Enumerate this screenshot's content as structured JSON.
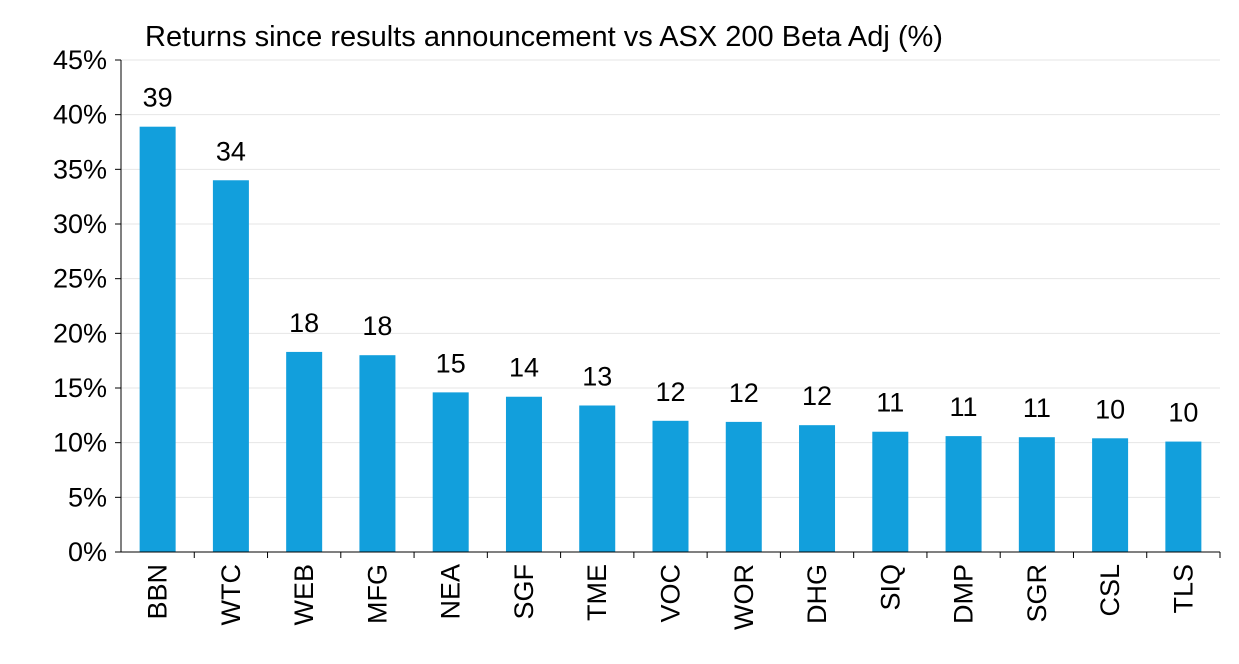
{
  "chart_data": {
    "type": "bar",
    "title": "Returns since results announcement vs ASX 200 Beta Adj (%)",
    "xlabel": "",
    "ylabel": "",
    "categories": [
      "BBN",
      "WTC",
      "WEB",
      "MFG",
      "NEA",
      "SGF",
      "TME",
      "VOC",
      "WOR",
      "DHG",
      "SIQ",
      "DMP",
      "SGR",
      "CSL",
      "TLS"
    ],
    "values": [
      38.9,
      34.0,
      18.3,
      18.0,
      14.6,
      14.2,
      13.4,
      12.0,
      11.9,
      11.6,
      11.0,
      10.6,
      10.5,
      10.4,
      10.1
    ],
    "data_labels": [
      "39",
      "34",
      "18",
      "18",
      "15",
      "14",
      "13",
      "12",
      "12",
      "12",
      "11",
      "11",
      "11",
      "10",
      "10"
    ],
    "ylim": [
      0,
      45
    ],
    "yticks": [
      0,
      5,
      10,
      15,
      20,
      25,
      30,
      35,
      40,
      45
    ],
    "ytick_labels": [
      "0%",
      "5%",
      "10%",
      "15%",
      "20%",
      "25%",
      "30%",
      "35%",
      "40%",
      "45%"
    ],
    "grid": true,
    "legend": "none",
    "colors": {
      "bar": "#129fdc",
      "grid": "#e6e6e6",
      "axis": "#000000",
      "text": "#000000"
    }
  }
}
